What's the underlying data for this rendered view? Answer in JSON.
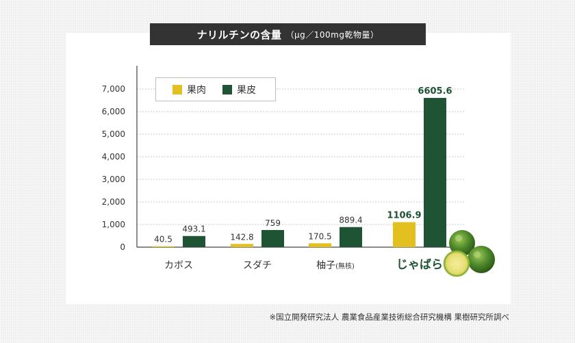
{
  "title": "ナリルチンの含量",
  "unit": "（μg／100mg乾物量）",
  "source": "※国立開発研究法人 農業食品産業技術総合研究機構 果樹研究所調べ",
  "colors": {
    "flesh": "#e3bf1f",
    "peel": "#1e5434",
    "highlight": "#1e5434"
  },
  "icons": [
    "jabara-fruit-illustration"
  ],
  "chart_data": {
    "type": "bar",
    "categories": [
      "カボス",
      "スダチ",
      "柚子",
      "じゃばら"
    ],
    "category_notes": [
      "",
      "",
      "(無核)",
      ""
    ],
    "highlight_category": "じゃばら",
    "series": [
      {
        "name": "果肉",
        "values": [
          40.5,
          142.8,
          170.5,
          1106.9
        ]
      },
      {
        "name": "果皮",
        "values": [
          493.1,
          759,
          889.4,
          6605.6
        ]
      }
    ],
    "value_labels": [
      [
        "40.5",
        "142.8",
        "170.5",
        "1106.9"
      ],
      [
        "493.1",
        "759",
        "889.4",
        "6605.6"
      ]
    ],
    "yticks": [
      "0",
      "1,000",
      "2,000",
      "3,000",
      "4,000",
      "5,000",
      "6,000",
      "7,000"
    ],
    "ylim": [
      0,
      7000
    ],
    "grid": true,
    "legend_position": "top-left",
    "xlabel": "",
    "ylabel": ""
  }
}
